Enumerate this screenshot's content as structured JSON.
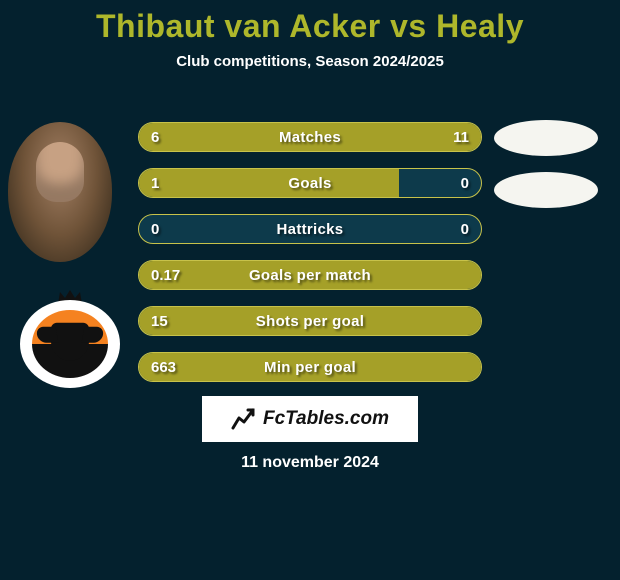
{
  "title": {
    "text": "Thibaut van Acker vs Healy",
    "color": "#aeb72b"
  },
  "subtitle": "Club competitions, Season 2024/2025",
  "date": "11 november 2024",
  "branding": "FcTables.com",
  "colors": {
    "background": "#04212e",
    "bar_fill": "#a5a028",
    "bar_border": "#c7c24a",
    "row_bg": "#0d3a4b",
    "text": "#ffffff",
    "placeholder": "#f5f5f0"
  },
  "rows": [
    {
      "label": "Matches",
      "left_value": "6",
      "right_value": "11",
      "left_pct": 35,
      "right_pct": 65
    },
    {
      "label": "Goals",
      "left_value": "1",
      "right_value": "0",
      "left_pct": 76,
      "right_pct": 0
    },
    {
      "label": "Hattricks",
      "left_value": "0",
      "right_value": "0",
      "left_pct": 0,
      "right_pct": 0
    },
    {
      "label": "Goals per match",
      "left_value": "0.17",
      "right_value": "",
      "left_pct": 100,
      "right_pct": 0
    },
    {
      "label": "Shots per goal",
      "left_value": "15",
      "right_value": "",
      "left_pct": 100,
      "right_pct": 0
    },
    {
      "label": "Min per goal",
      "left_value": "663",
      "right_value": "",
      "left_pct": 100,
      "right_pct": 0
    }
  ]
}
